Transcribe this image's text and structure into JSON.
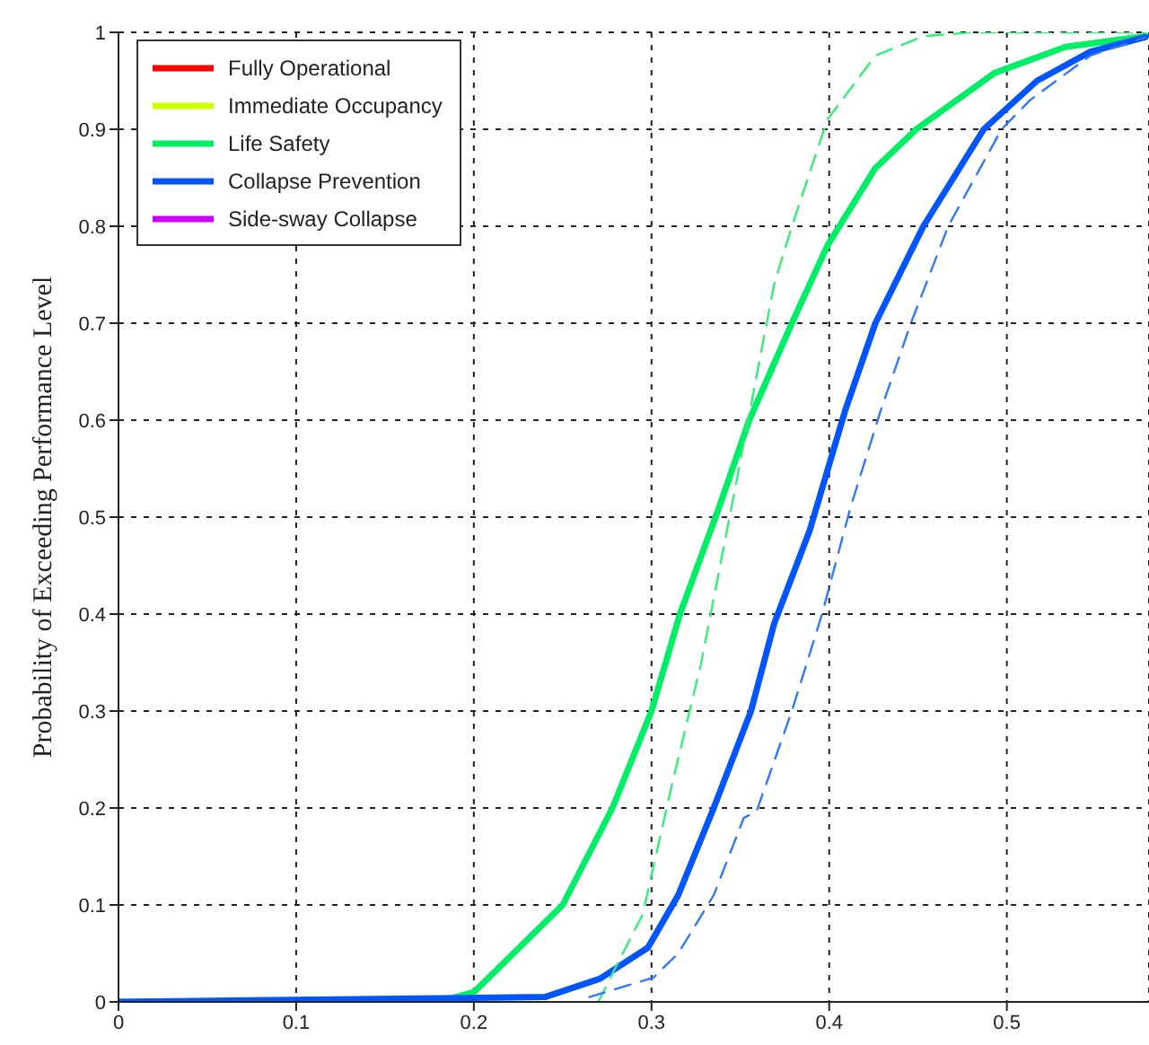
{
  "chart_data": {
    "type": "line",
    "ylabel": "Probability of Exceeding Performance Level",
    "xlim": [
      0,
      0.58
    ],
    "xticks": [
      0,
      0.1,
      0.2,
      0.3,
      0.4,
      0.5
    ],
    "ylim": [
      0,
      1
    ],
    "yticks": [
      0,
      0.1,
      0.2,
      0.3,
      0.4,
      0.5,
      0.6,
      0.7,
      0.8,
      0.9,
      1
    ],
    "grid": true,
    "legend": "top left",
    "marker": "none",
    "series": [
      {
        "name": "Fully Operational",
        "color": "#ff0000"
      },
      {
        "name": "Immediate Occupancy",
        "color": "#ccff00"
      },
      {
        "name": "Life Safety",
        "color": "#00ee66",
        "line_style": "solid",
        "x": [
          0,
          0.18,
          0.2,
          0.25,
          0.278,
          0.3,
          0.316,
          0.338,
          0.355,
          0.379,
          0.399,
          0.426,
          0.449,
          0.493,
          0.533,
          0.578
        ],
        "values": [
          0,
          0,
          0.01,
          0.1,
          0.2,
          0.3,
          0.4,
          0.51,
          0.6,
          0.7,
          0.78,
          0.86,
          0.9,
          0.958,
          0.985,
          0.996
        ]
      },
      {
        "name": "Collapse Prevention",
        "color": "#0055ff",
        "line_style": "solid",
        "x": [
          0,
          0.24,
          0.271,
          0.298,
          0.315,
          0.335,
          0.356,
          0.369,
          0.389,
          0.409,
          0.426,
          0.453,
          0.487,
          0.517,
          0.547,
          0.578
        ],
        "values": [
          0,
          0.005,
          0.024,
          0.056,
          0.11,
          0.2,
          0.3,
          0.39,
          0.486,
          0.61,
          0.7,
          0.8,
          0.9,
          0.95,
          0.98,
          0.995
        ]
      },
      {
        "name": "Side-sway Collapse",
        "color": "#cc00ff"
      },
      {
        "color": "#33ee77",
        "line_style": "dashed",
        "x": [
          0.27,
          0.281,
          0.295,
          0.311,
          0.328,
          0.345,
          0.369,
          0.379,
          0.399,
          0.426,
          0.453,
          0.48,
          0.578
        ],
        "values": [
          0,
          0.04,
          0.09,
          0.22,
          0.35,
          0.51,
          0.74,
          0.8,
          0.91,
          0.976,
          0.996,
          1,
          1
        ]
      },
      {
        "color": "#3377ff",
        "line_style": "dashed",
        "x": [
          0.265,
          0.301,
          0.315,
          0.335,
          0.352,
          0.359,
          0.379,
          0.396,
          0.412,
          0.429,
          0.446,
          0.467,
          0.497,
          0.513,
          0.547,
          0.578
        ],
        "values": [
          0.005,
          0.025,
          0.05,
          0.11,
          0.19,
          0.196,
          0.3,
          0.4,
          0.51,
          0.61,
          0.7,
          0.8,
          0.9,
          0.93,
          0.976,
          0.995
        ]
      }
    ]
  }
}
